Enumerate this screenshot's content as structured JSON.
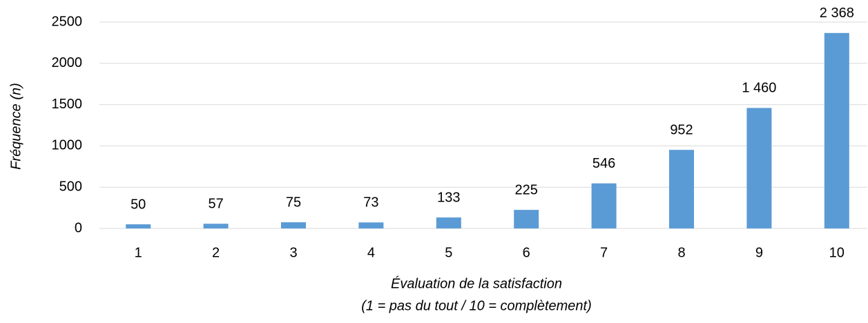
{
  "chart_data": {
    "type": "bar",
    "y_label": "Fréquence (n)",
    "x_label": [
      "Évaluation de la satisfaction",
      "(1 = pas du tout / 10 = complètement)"
    ],
    "categories": [
      "1",
      "2",
      "3",
      "4",
      "5",
      "6",
      "7",
      "8",
      "9",
      "10"
    ],
    "values": [
      50,
      57,
      75,
      73,
      133,
      225,
      546,
      952,
      1460,
      2368
    ],
    "value_labels": [
      "50",
      "57",
      "75",
      "73",
      "133",
      "225",
      "546",
      "952",
      "1 460",
      "2 368"
    ],
    "color": "#5b9bd5",
    "ylim": [
      0,
      2500
    ],
    "yticks": [
      0,
      500,
      1000,
      1500,
      2000,
      2500
    ],
    "grid": true
  }
}
